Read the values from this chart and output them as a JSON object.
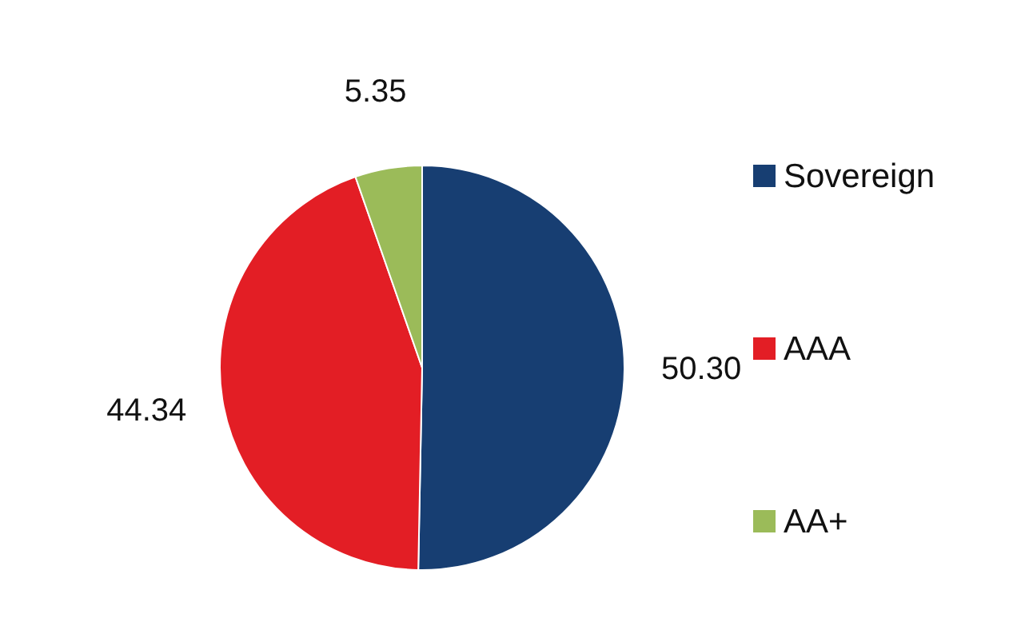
{
  "chart_data": {
    "type": "pie",
    "categories": [
      "Sovereign",
      "AAA",
      "AA+"
    ],
    "values": [
      50.3,
      44.34,
      5.35
    ],
    "colors": [
      "#173e72",
      "#e31e25",
      "#9bbb59"
    ],
    "value_labels": [
      "50.30",
      "44.34",
      "5.35"
    ],
    "legend": "right"
  }
}
